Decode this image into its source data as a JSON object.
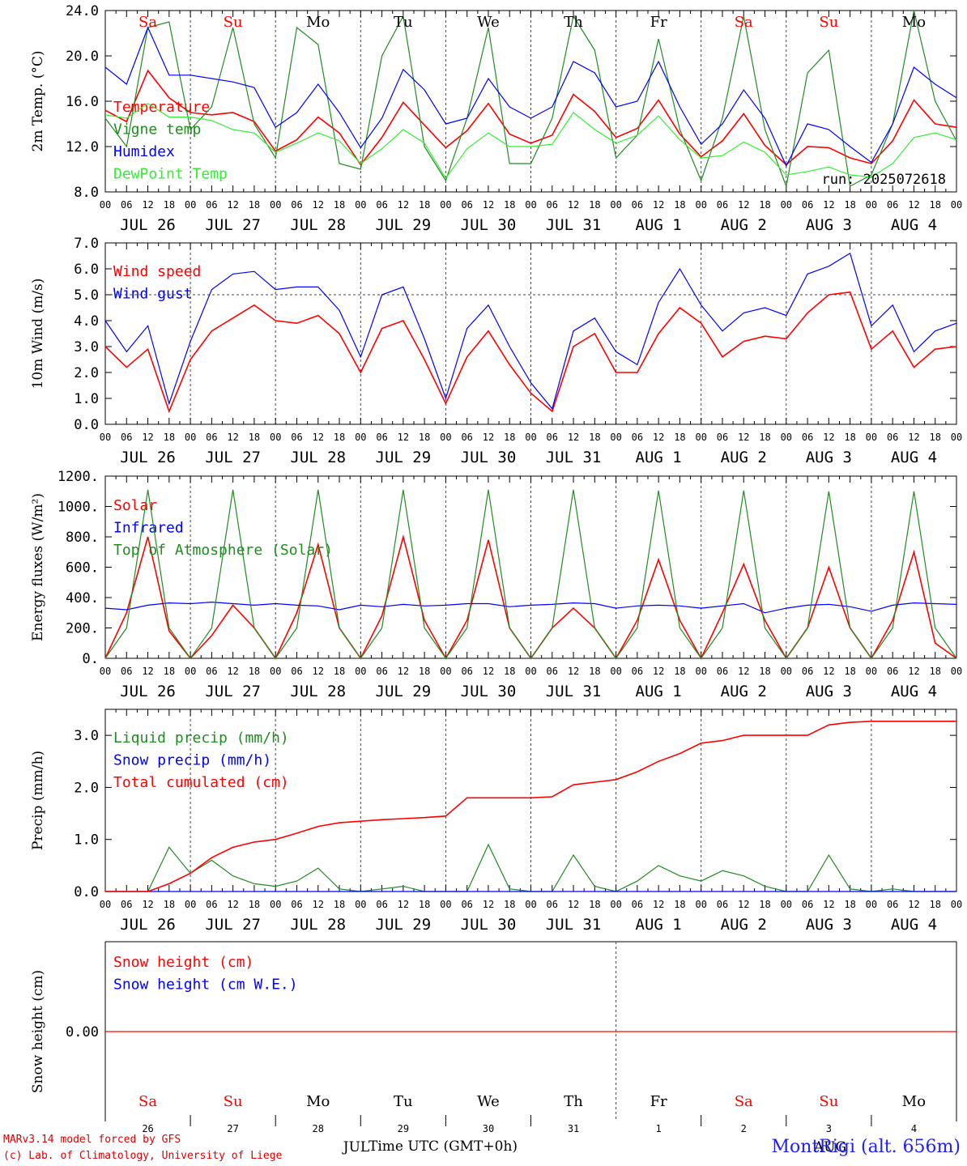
{
  "footer": {
    "model_line": "MARv3.14 model forced by GFS",
    "lab_line": "(c) Lab. of Climatology, University of Liege",
    "x_axis_title": "Time UTC (GMT+0h)",
    "station": "MontRigi (alt. 656m)",
    "month_left": "JUL",
    "month_right": "AUG"
  },
  "run_label": "run: 2025072618",
  "colors": {
    "red": "#ff0000",
    "green": "#228b22",
    "blue": "#0000ff",
    "lightgreen": "#33ee33",
    "grid": "#555555"
  },
  "chart_data": [
    {
      "type": "line",
      "id": "temperature",
      "ylabel": "2m Temp. (°C)",
      "ylim": [
        8,
        24
      ],
      "yticks": [
        "8.0",
        "12.0",
        "16.0",
        "20.0",
        "24.0"
      ],
      "hours": [
        0,
        6,
        12,
        18,
        24,
        30,
        36,
        42,
        48,
        54,
        60,
        66,
        72,
        78,
        84,
        90,
        96,
        102,
        108,
        114,
        120,
        126,
        132,
        138,
        144,
        150,
        156,
        162,
        168,
        174,
        180,
        186,
        192,
        198,
        204,
        210,
        216,
        222,
        228,
        234,
        240
      ],
      "series": [
        {
          "name": "Temperature",
          "color": "#ff0000",
          "values": [
            15.2,
            14.2,
            18.7,
            16.3,
            15.0,
            14.8,
            15.0,
            14.2,
            11.6,
            12.6,
            14.6,
            13.2,
            10.4,
            12.8,
            15.9,
            13.9,
            11.9,
            13.4,
            15.8,
            13.1,
            12.3,
            13.0,
            16.6,
            15.1,
            12.8,
            13.6,
            16.1,
            13.1,
            11.1,
            12.5,
            14.9,
            12.1,
            10.4,
            12.0,
            11.9,
            11.0,
            10.5,
            12.5,
            16.1,
            14.0,
            13.7
          ]
        },
        {
          "name": "Vigne temp",
          "color": "#228b22",
          "values": [
            14.5,
            12.0,
            22.5,
            23.0,
            13.5,
            15.5,
            22.5,
            14.0,
            11.0,
            22.5,
            21.0,
            10.5,
            10.0,
            20.0,
            23.5,
            12.0,
            9.0,
            14.5,
            22.5,
            10.5,
            10.5,
            14.5,
            23.5,
            20.5,
            11.0,
            13.0,
            21.5,
            13.5,
            9.0,
            14.5,
            23.5,
            13.5,
            8.5,
            18.5,
            20.5,
            8.5,
            9.5,
            14.0,
            24.0,
            16.0,
            12.5
          ]
        },
        {
          "name": "Humidex",
          "color": "#0000ff",
          "values": [
            19.0,
            17.5,
            22.5,
            18.3,
            18.3,
            18.0,
            17.7,
            17.2,
            13.7,
            15.0,
            17.5,
            15.0,
            11.9,
            14.5,
            18.8,
            17.0,
            14.0,
            14.5,
            18.0,
            15.5,
            14.5,
            15.5,
            19.5,
            18.5,
            15.5,
            16.0,
            19.5,
            15.5,
            12.2,
            14.0,
            17.0,
            14.5,
            10.3,
            14.0,
            13.5,
            12.0,
            10.6,
            14.0,
            19.0,
            17.5,
            16.3
          ]
        },
        {
          "name": "DewPoint Temp",
          "color": "#33ee33",
          "values": [
            14.8,
            14.5,
            15.8,
            14.6,
            14.6,
            14.3,
            13.5,
            13.2,
            11.5,
            12.3,
            13.2,
            12.5,
            10.5,
            11.8,
            13.5,
            12.3,
            9.2,
            11.8,
            13.2,
            12.0,
            12.0,
            12.2,
            15.0,
            13.5,
            12.3,
            13.0,
            14.7,
            12.6,
            11.0,
            11.2,
            12.4,
            11.5,
            9.5,
            9.8,
            10.2,
            9.5,
            9.3,
            10.5,
            12.8,
            13.2,
            12.6
          ]
        }
      ]
    },
    {
      "type": "line",
      "id": "wind",
      "ylabel": "10m Wind (m/s)",
      "ylim": [
        0,
        7
      ],
      "yticks": [
        "0.0",
        "1.0",
        "2.0",
        "3.0",
        "4.0",
        "5.0",
        "6.0",
        "7.0"
      ],
      "reference_line": 5.0,
      "hours": [
        0,
        6,
        12,
        18,
        24,
        30,
        36,
        42,
        48,
        54,
        60,
        66,
        72,
        78,
        84,
        90,
        96,
        102,
        108,
        114,
        120,
        126,
        132,
        138,
        144,
        150,
        156,
        162,
        168,
        174,
        180,
        186,
        192,
        198,
        204,
        210,
        216,
        222,
        228,
        234,
        240
      ],
      "series": [
        {
          "name": "Wind speed",
          "color": "#ff0000",
          "values": [
            3.0,
            2.2,
            2.9,
            0.5,
            2.5,
            3.6,
            4.1,
            4.6,
            4.0,
            3.9,
            4.2,
            3.5,
            2.0,
            3.7,
            4.0,
            2.5,
            0.8,
            2.6,
            3.6,
            2.3,
            1.2,
            0.5,
            3.0,
            3.5,
            2.0,
            2.0,
            3.5,
            4.5,
            3.9,
            2.6,
            3.2,
            3.4,
            3.3,
            4.3,
            5.0,
            5.1,
            2.9,
            3.6,
            2.2,
            2.9,
            3.0
          ]
        },
        {
          "name": "Wind gust",
          "color": "#0000ff",
          "values": [
            4.0,
            2.8,
            3.8,
            0.8,
            3.2,
            5.2,
            5.8,
            5.9,
            5.2,
            5.3,
            5.3,
            4.4,
            2.6,
            5.0,
            5.3,
            3.3,
            1.0,
            3.7,
            4.6,
            3.0,
            1.6,
            0.6,
            3.6,
            4.1,
            2.8,
            2.3,
            4.7,
            6.0,
            4.6,
            3.6,
            4.3,
            4.5,
            4.2,
            5.8,
            6.1,
            6.6,
            3.8,
            4.6,
            2.8,
            3.6,
            3.9
          ]
        }
      ]
    },
    {
      "type": "line",
      "id": "energy",
      "ylabel": "Energy fluxes (W/m²)",
      "ylim": [
        0,
        1200
      ],
      "yticks": [
        "0.",
        "200.",
        "400.",
        "600.",
        "800.",
        "1000.",
        "1200."
      ],
      "hours": [
        0,
        6,
        12,
        18,
        24,
        30,
        36,
        42,
        48,
        54,
        60,
        66,
        72,
        78,
        84,
        90,
        96,
        102,
        108,
        114,
        120,
        126,
        132,
        138,
        144,
        150,
        156,
        162,
        168,
        174,
        180,
        186,
        192,
        198,
        204,
        210,
        216,
        222,
        228,
        234,
        240
      ],
      "series": [
        {
          "name": "Solar",
          "color": "#ff0000",
          "values": [
            0,
            300,
            800,
            180,
            0,
            150,
            350,
            200,
            0,
            300,
            750,
            200,
            0,
            280,
            800,
            250,
            0,
            250,
            780,
            200,
            0,
            200,
            330,
            200,
            0,
            250,
            650,
            250,
            0,
            300,
            620,
            250,
            0,
            200,
            600,
            200,
            0,
            250,
            700,
            100,
            0
          ]
        },
        {
          "name": "Infrared",
          "color": "#0000ff",
          "values": [
            330,
            320,
            350,
            365,
            360,
            370,
            360,
            350,
            360,
            350,
            345,
            320,
            350,
            340,
            355,
            345,
            350,
            360,
            360,
            340,
            350,
            355,
            365,
            360,
            330,
            345,
            350,
            345,
            330,
            345,
            360,
            300,
            330,
            350,
            355,
            340,
            310,
            350,
            365,
            360,
            355
          ]
        },
        {
          "name": "Top of Atmosphere (Solar)",
          "color": "#228b22",
          "values": [
            0,
            200,
            1110,
            200,
            0,
            200,
            1110,
            200,
            0,
            200,
            1110,
            200,
            0,
            200,
            1110,
            200,
            0,
            200,
            1110,
            200,
            0,
            200,
            1110,
            200,
            0,
            200,
            1105,
            200,
            0,
            200,
            1105,
            200,
            0,
            200,
            1100,
            200,
            0,
            200,
            1100,
            200,
            0
          ]
        }
      ]
    },
    {
      "type": "line",
      "id": "precip",
      "ylabel": "Precip (mm/h)",
      "ylim": [
        0,
        3.5
      ],
      "yticks": [
        "0.0",
        "1.0",
        "2.0",
        "3.0"
      ],
      "hours": [
        0,
        6,
        12,
        18,
        24,
        30,
        36,
        42,
        48,
        54,
        60,
        66,
        72,
        78,
        84,
        90,
        96,
        102,
        108,
        114,
        120,
        126,
        132,
        138,
        144,
        150,
        156,
        162,
        168,
        174,
        180,
        186,
        192,
        198,
        204,
        210,
        216,
        222,
        228,
        234,
        240
      ],
      "series": [
        {
          "name": "Liquid precip (mm/h)",
          "color": "#228b22",
          "values": [
            0,
            0,
            0,
            0.85,
            0.35,
            0.6,
            0.3,
            0.15,
            0.1,
            0.2,
            0.45,
            0.05,
            0,
            0.05,
            0.1,
            0,
            0,
            0,
            0.9,
            0.05,
            0,
            0,
            0.7,
            0.1,
            0,
            0.2,
            0.5,
            0.3,
            0.2,
            0.4,
            0.3,
            0.1,
            0,
            0,
            0.7,
            0.05,
            0,
            0.05,
            0,
            0,
            0
          ]
        },
        {
          "name": "Snow precip (mm/h)",
          "color": "#0000ff",
          "values": [
            0,
            0,
            0,
            0,
            0,
            0,
            0,
            0,
            0,
            0,
            0,
            0,
            0,
            0,
            0,
            0,
            0,
            0,
            0,
            0,
            0,
            0,
            0,
            0,
            0,
            0,
            0,
            0,
            0,
            0,
            0,
            0,
            0,
            0,
            0,
            0,
            0,
            0,
            0,
            0,
            0
          ]
        },
        {
          "name": "Total cumulated (cm)",
          "color": "#ff0000",
          "values": [
            0,
            0,
            0,
            0.15,
            0.35,
            0.65,
            0.85,
            0.95,
            1.0,
            1.12,
            1.25,
            1.32,
            1.35,
            1.38,
            1.4,
            1.42,
            1.45,
            1.8,
            1.8,
            1.8,
            1.8,
            1.82,
            2.05,
            2.1,
            2.15,
            2.3,
            2.5,
            2.65,
            2.85,
            2.9,
            3.0,
            3.0,
            3.0,
            3.0,
            3.2,
            3.25,
            3.27,
            3.27,
            3.27,
            3.27,
            3.27
          ]
        }
      ]
    },
    {
      "type": "line",
      "id": "snow",
      "ylabel": "Snow height (cm)",
      "ylim": [
        -1,
        1
      ],
      "yticks": [
        "0.00"
      ],
      "hours": [
        0,
        240
      ],
      "series": [
        {
          "name": "Snow height (cm)",
          "color": "#ff0000",
          "values": [
            0,
            0
          ]
        },
        {
          "name": "Snow height (cm W.E.)",
          "color": "#0000ff",
          "values": []
        }
      ]
    }
  ],
  "days": [
    {
      "abbr": "Sa",
      "weekend": true,
      "date": "JUL 26",
      "num": "26"
    },
    {
      "abbr": "Su",
      "weekend": true,
      "date": "JUL 27",
      "num": "27"
    },
    {
      "abbr": "Mo",
      "weekend": false,
      "date": "JUL 28",
      "num": "28"
    },
    {
      "abbr": "Tu",
      "weekend": false,
      "date": "JUL 29",
      "num": "29"
    },
    {
      "abbr": "We",
      "weekend": false,
      "date": "JUL 30",
      "num": "30"
    },
    {
      "abbr": "Th",
      "weekend": false,
      "date": "JUL 31",
      "num": "31"
    },
    {
      "abbr": "Fr",
      "weekend": false,
      "date": "AUG  1",
      "num": "1"
    },
    {
      "abbr": "Sa",
      "weekend": true,
      "date": "AUG  2",
      "num": "2"
    },
    {
      "abbr": "Su",
      "weekend": true,
      "date": "AUG  3",
      "num": "3"
    },
    {
      "abbr": "Mo",
      "weekend": false,
      "date": "AUG  4",
      "num": "4"
    }
  ],
  "hour_ticks": [
    "00",
    "06",
    "12",
    "18"
  ]
}
